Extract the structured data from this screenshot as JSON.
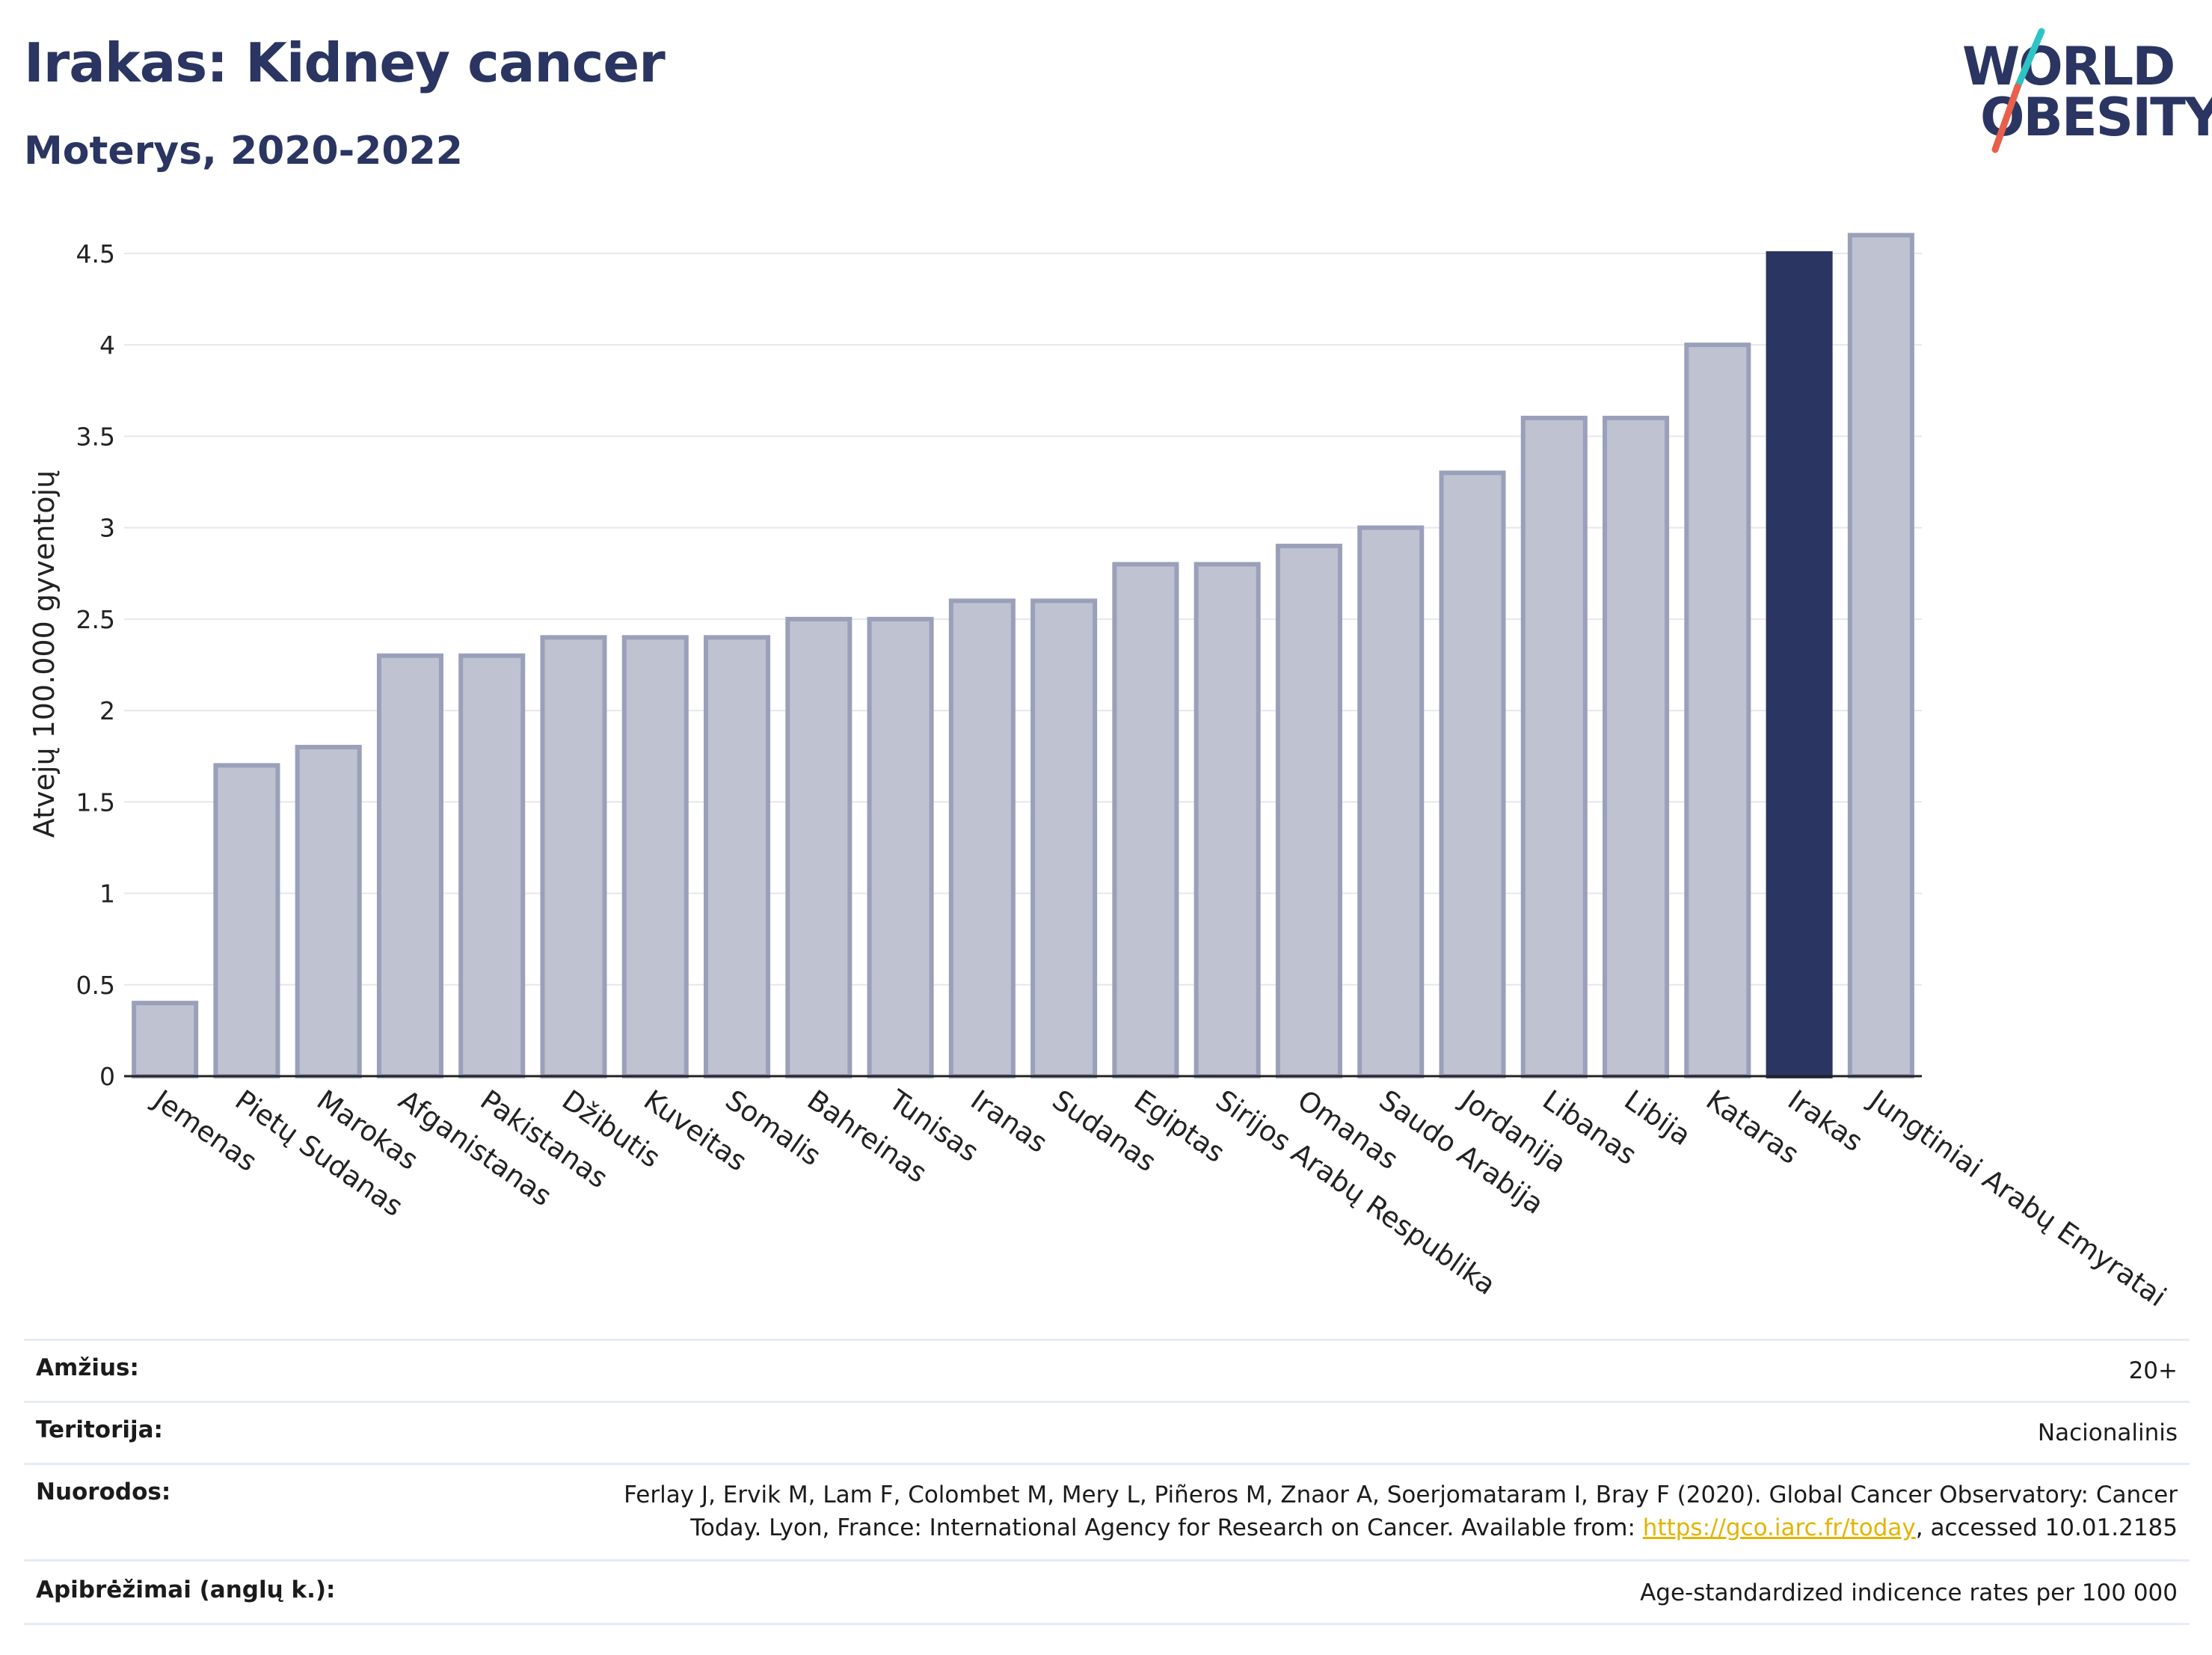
{
  "header": {
    "title": "Irakas: Kidney cancer",
    "subtitle": "Moterys, 2020-2022"
  },
  "logo": {
    "line1": "WORLD",
    "line2": "OBESITY"
  },
  "colors": {
    "bar_default": "#bfc2d0",
    "bar_border": "#9aa0ba",
    "bar_highlight": "#2b3562",
    "title": "#2b3562",
    "link": "#e2b400",
    "logo_slash_top": "#2ec4c6",
    "logo_slash_bottom": "#e8604c"
  },
  "chart_data": {
    "type": "bar",
    "ylabel": "Atvejų 100.000 gyventojų",
    "ylim": [
      0,
      4.7
    ],
    "yticks": [
      0,
      0.5,
      1,
      1.5,
      2,
      2.5,
      3,
      3.5,
      4,
      4.5
    ],
    "ytick_labels": [
      "0",
      "0.5",
      "1",
      "1.5",
      "2",
      "2.5",
      "3",
      "3.5",
      "4",
      "4.5"
    ],
    "grid": true,
    "highlight": "Irakas",
    "categories": [
      "Jemenas",
      "Pietų Sudanas",
      "Marokas",
      "Afganistanas",
      "Pakistanas",
      "Džibutis",
      "Kuveitas",
      "Somalis",
      "Bahreinas",
      "Tunisas",
      "Iranas",
      "Sudanas",
      "Egiptas",
      "Sirijos Arabų Respublika",
      "Omanas",
      "Saudo Arabija",
      "Jordanija",
      "Libanas",
      "Libija",
      "Kataras",
      "Irakas",
      "Jungtiniai Arabų Emyratai"
    ],
    "values": [
      0.4,
      1.7,
      1.8,
      2.3,
      2.3,
      2.4,
      2.4,
      2.4,
      2.5,
      2.5,
      2.6,
      2.6,
      2.8,
      2.8,
      2.9,
      3.0,
      3.3,
      3.6,
      3.6,
      4.0,
      4.5,
      4.6
    ]
  },
  "meta": {
    "age_label": "Amžius:",
    "age_value": "20+",
    "territory_label": "Teritorija:",
    "territory_value": "Nacionalinis",
    "refs_label": "Nuorodos:",
    "refs_line1": "Ferlay J, Ervik M, Lam F, Colombet M, Mery L, Piñeros M, Znaor A, Soerjomataram I, Bray F (2020). Global Cancer Observatory: Cancer",
    "refs_line2_pre": "Today. Lyon, France: International Agency for Research on Cancer. Available from: ",
    "refs_link": "https://gco.iarc.fr/today",
    "refs_line2_post": ", accessed 10.01.2185",
    "defs_label": "Apibrėžimai (anglų k.):",
    "defs_value": "Age-standardized indicence rates per 100 000"
  }
}
